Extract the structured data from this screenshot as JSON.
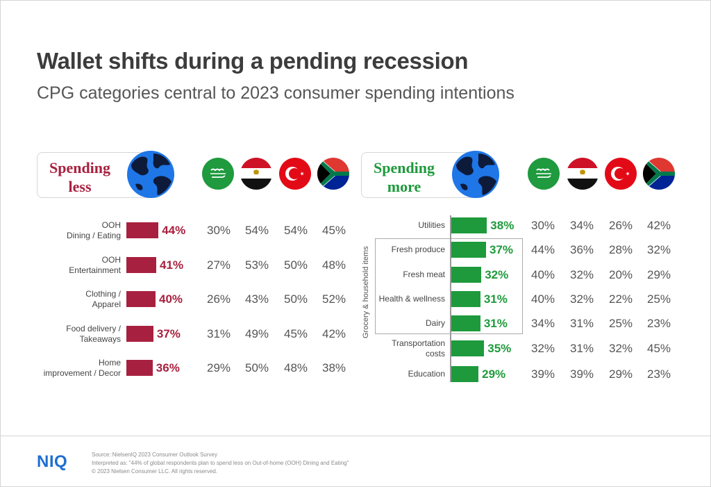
{
  "title": "Wallet shifts during a pending recession",
  "subtitle": "CPG categories central to 2023 consumer spending intentions",
  "colors": {
    "less": "#a8203f",
    "more": "#1e9a3c",
    "globe": "#1f76e6",
    "globe_land": "#0d1a3a",
    "logo": "#1f6fd1"
  },
  "flags": [
    "saudi-arabia-flag-icon",
    "egypt-flag-icon",
    "turkey-flag-icon",
    "south-africa-flag-icon"
  ],
  "chart_data": [
    {
      "type": "bar",
      "header": [
        "Spending",
        "less"
      ],
      "categories": [
        [
          "OOH",
          "Dining / Eating"
        ],
        [
          "OOH",
          "Entertainment"
        ],
        [
          "Clothing /",
          "Apparel"
        ],
        [
          "Food delivery /",
          "Takeaways"
        ],
        [
          "Home",
          "improvement / Decor"
        ]
      ],
      "values": [
        44,
        41,
        40,
        37,
        36
      ],
      "value_labels": [
        "44%",
        "41%",
        "40%",
        "37%",
        "36%"
      ],
      "country_values": [
        [
          "30%",
          "54%",
          "54%",
          "45%"
        ],
        [
          "27%",
          "53%",
          "50%",
          "48%"
        ],
        [
          "26%",
          "43%",
          "50%",
          "52%"
        ],
        [
          "31%",
          "49%",
          "45%",
          "42%"
        ],
        [
          "29%",
          "50%",
          "48%",
          "38%"
        ]
      ]
    },
    {
      "type": "bar",
      "header": [
        "Spending",
        "more"
      ],
      "group_label": "Grocery & household items",
      "categories": [
        [
          "Utilities"
        ],
        [
          "Fresh produce"
        ],
        [
          "Fresh meat"
        ],
        [
          "Health & wellness"
        ],
        [
          "Dairy"
        ],
        [
          "Transportation",
          "costs"
        ],
        [
          "Education"
        ]
      ],
      "values": [
        38,
        37,
        32,
        31,
        31,
        35,
        29
      ],
      "value_labels": [
        "38%",
        "37%",
        "32%",
        "31%",
        "31%",
        "35%",
        "29%"
      ],
      "country_values": [
        [
          "30%",
          "34%",
          "26%",
          "42%"
        ],
        [
          "44%",
          "36%",
          "28%",
          "32%"
        ],
        [
          "40%",
          "32%",
          "20%",
          "29%"
        ],
        [
          "40%",
          "32%",
          "22%",
          "25%"
        ],
        [
          "34%",
          "31%",
          "25%",
          "23%"
        ],
        [
          "32%",
          "31%",
          "32%",
          "45%"
        ],
        [
          "39%",
          "39%",
          "29%",
          "23%"
        ]
      ]
    }
  ],
  "footer": {
    "logo": "NIQ",
    "source": "Source: NielsenIQ 2023 Consumer Outlook Survey",
    "interpreted": "Interpreted as: \"44% of global respondents plan to spend less on Out-of-home (OOH) Dining and Eating\"",
    "copyright": "© 2023 Nielsen Consumer LLC. All rights reserved."
  }
}
